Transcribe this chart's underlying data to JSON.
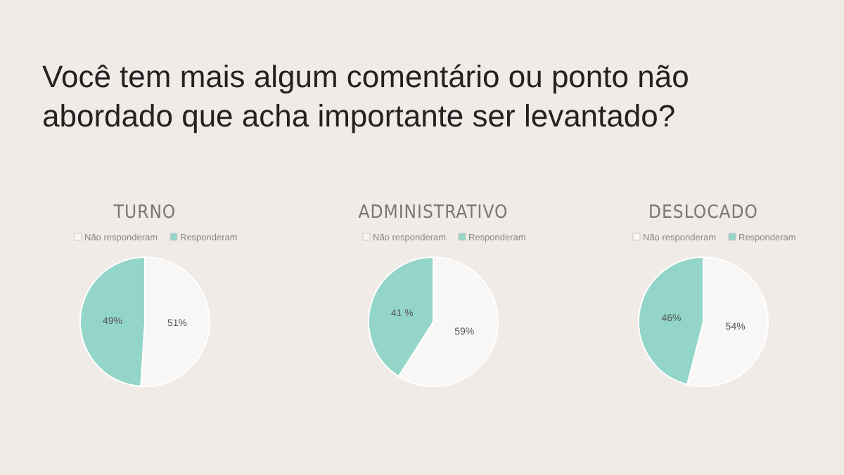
{
  "chart_data": [
    {
      "type": "other",
      "title": "Você tem mais algum comentário ou ponto não abordado que acha importante ser levantado?"
    },
    {
      "type": "pie",
      "title": "TURNO",
      "categories": [
        "Não responderam",
        "Responderam"
      ],
      "values": [
        51,
        49
      ],
      "value_labels": [
        "51%",
        "49%"
      ],
      "colors": [
        "#f9f7f6",
        "#93d5c9"
      ],
      "legend": "top"
    },
    {
      "type": "pie",
      "title": "ADMINISTRATIVO",
      "categories": [
        "Não responderam",
        "Responderam"
      ],
      "values": [
        59,
        41
      ],
      "value_labels": [
        "59%",
        "41 %"
      ],
      "colors": [
        "#f9f7f6",
        "#93d5c9"
      ],
      "legend": "top"
    },
    {
      "type": "pie",
      "title": "DESLOCADO",
      "categories": [
        "Não responderam",
        "Responderam"
      ],
      "values": [
        54,
        46
      ],
      "value_labels": [
        "54%",
        "46%"
      ],
      "colors": [
        "#f9f7f6",
        "#93d5c9"
      ],
      "legend": "top"
    }
  ]
}
